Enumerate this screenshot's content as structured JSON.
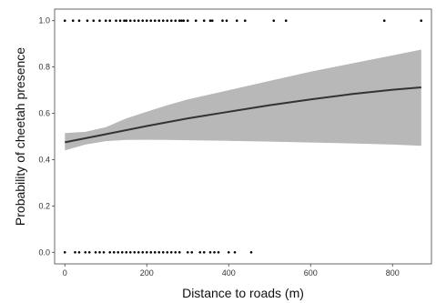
{
  "chart_data": {
    "type": "line",
    "title": "",
    "xlabel": "Distance to roads (m)",
    "ylabel": "Probability of cheetah presence",
    "xlim": [
      -25,
      895
    ],
    "ylim": [
      -0.05,
      1.05
    ],
    "x_ticks": [
      0,
      200,
      400,
      600,
      800
    ],
    "y_ticks": [
      0.0,
      0.2,
      0.4,
      0.6,
      0.8,
      1.0
    ],
    "x_tick_labels": [
      "0",
      "200",
      "400",
      "600",
      "800"
    ],
    "y_tick_labels": [
      "0.0",
      "0.2",
      "0.4",
      "0.6",
      "0.8",
      "1.0"
    ],
    "grid": false,
    "series": [
      {
        "role": "fit",
        "x": [
          0,
          100,
          200,
          300,
          400,
          500,
          600,
          700,
          800,
          870
        ],
        "y": [
          0.475,
          0.51,
          0.545,
          0.578,
          0.607,
          0.635,
          0.66,
          0.683,
          0.702,
          0.712
        ]
      },
      {
        "role": "confidence_band",
        "x": [
          0,
          50,
          100,
          150,
          200,
          250,
          300,
          400,
          500,
          600,
          700,
          800,
          870
        ],
        "lower": [
          0.44,
          0.465,
          0.48,
          0.485,
          0.486,
          0.485,
          0.484,
          0.481,
          0.478,
          0.474,
          0.47,
          0.465,
          0.46
        ],
        "upper": [
          0.515,
          0.52,
          0.54,
          0.578,
          0.607,
          0.635,
          0.66,
          0.7,
          0.74,
          0.78,
          0.815,
          0.85,
          0.875
        ]
      },
      {
        "role": "observations_presence",
        "y_value": 1.0,
        "x": [
          0,
          20,
          35,
          55,
          70,
          85,
          100,
          110,
          125,
          135,
          145,
          150,
          160,
          170,
          180,
          190,
          200,
          210,
          220,
          230,
          240,
          250,
          260,
          270,
          280,
          285,
          290,
          300,
          320,
          340,
          355,
          360,
          385,
          395,
          420,
          440,
          510,
          540,
          780,
          870
        ]
      },
      {
        "role": "observations_absence",
        "y_value": 0.0,
        "x": [
          0,
          25,
          35,
          50,
          60,
          75,
          85,
          95,
          110,
          120,
          130,
          140,
          150,
          160,
          170,
          180,
          190,
          200,
          210,
          220,
          230,
          240,
          250,
          260,
          270,
          280,
          300,
          310,
          330,
          340,
          355,
          365,
          375,
          400,
          415,
          455
        ]
      }
    ],
    "colors": {
      "fit_line": "#333333",
      "band": "#b8b8b8",
      "points": "#000000",
      "axis": "#444444"
    }
  }
}
